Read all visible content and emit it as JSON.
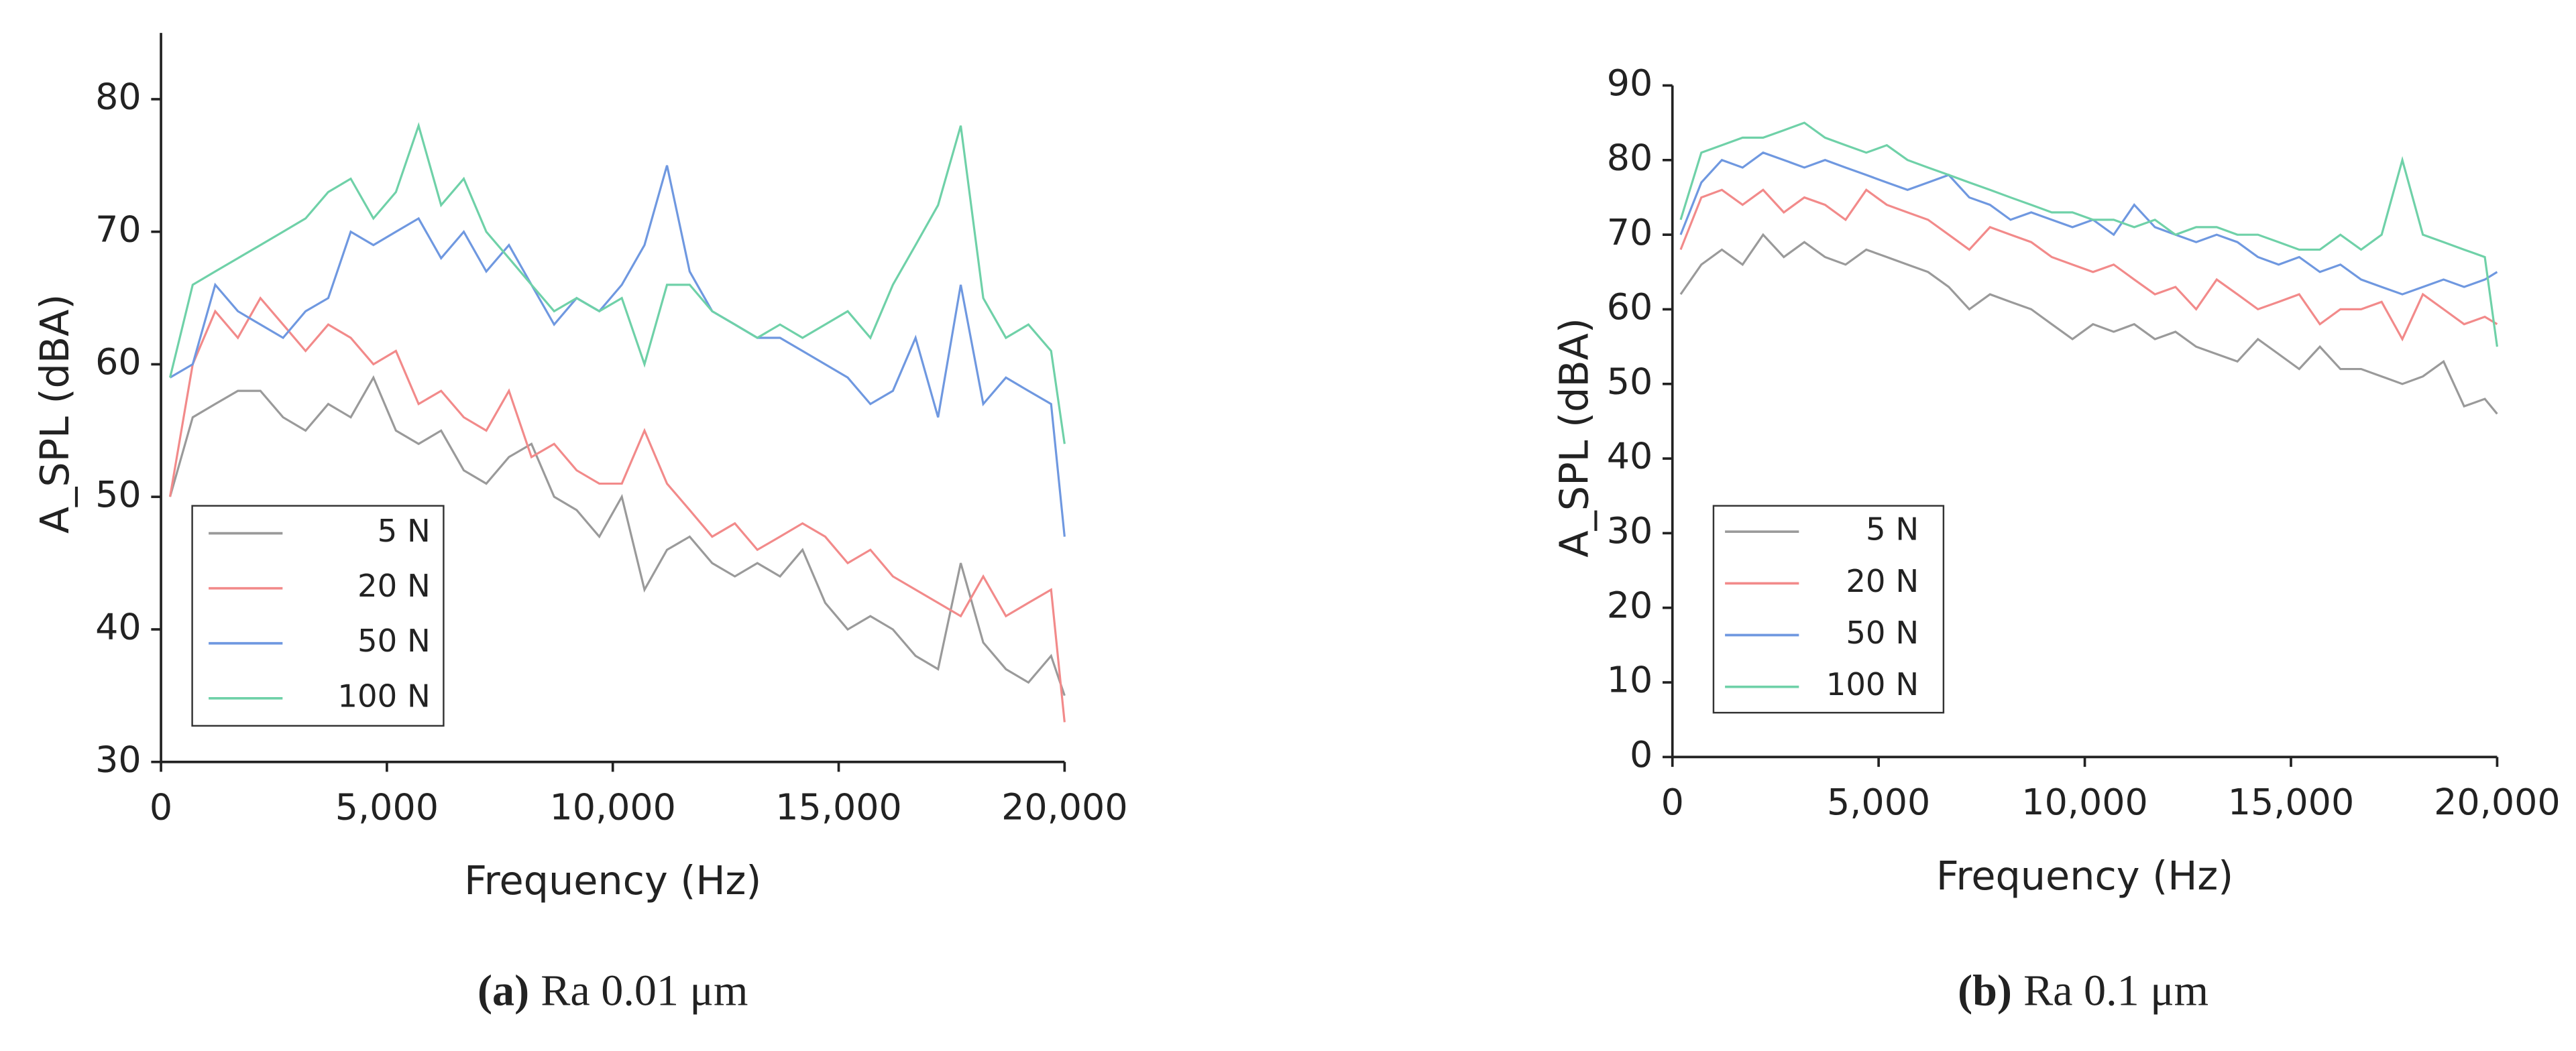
{
  "chart_data": [
    {
      "type": "line",
      "caption_label": "(a)",
      "caption": "Ra 0.01 μm",
      "xlabel": "Frequency (Hz)",
      "ylabel": "A_SPL (dBA)",
      "x": [
        200,
        700,
        1200,
        1700,
        2200,
        2700,
        3200,
        3700,
        4200,
        4700,
        5200,
        5700,
        6200,
        6700,
        7200,
        7700,
        8200,
        8700,
        9200,
        9700,
        10200,
        10700,
        11200,
        11700,
        12200,
        12700,
        13200,
        13700,
        14200,
        14700,
        15200,
        15700,
        16200,
        16700,
        17200,
        17700,
        18200,
        18700,
        19200,
        19700,
        20000
      ],
      "xlim": [
        0,
        20000
      ],
      "xticks": [
        0,
        {
          "value": 5000,
          "label": "5,000"
        },
        {
          "value": 10000,
          "label": "10,000"
        },
        {
          "value": 15000,
          "label": "15,000"
        },
        {
          "value": 20000,
          "label": "20,000"
        }
      ],
      "ylim": [
        30,
        85
      ],
      "yticks": [
        30,
        40,
        50,
        60,
        70,
        80
      ],
      "grid": false,
      "legend": "lower left",
      "series": [
        {
          "name": "5 N",
          "color": "#9a9a9a",
          "values": [
            50,
            56,
            57,
            58,
            58,
            56,
            55,
            57,
            56,
            59,
            55,
            54,
            55,
            52,
            51,
            53,
            54,
            50,
            49,
            47,
            50,
            43,
            46,
            47,
            45,
            44,
            45,
            44,
            46,
            42,
            40,
            41,
            40,
            38,
            37,
            45,
            39,
            37,
            36,
            38,
            35
          ]
        },
        {
          "name": "20 N",
          "color": "#f28a8a",
          "values": [
            50,
            60,
            64,
            62,
            65,
            63,
            61,
            63,
            62,
            60,
            61,
            57,
            58,
            56,
            55,
            58,
            53,
            54,
            52,
            51,
            51,
            55,
            51,
            49,
            47,
            48,
            46,
            47,
            48,
            47,
            45,
            46,
            44,
            43,
            42,
            41,
            44,
            41,
            42,
            43,
            33
          ]
        },
        {
          "name": "50 N",
          "color": "#6f98e0",
          "values": [
            59,
            60,
            66,
            64,
            63,
            62,
            64,
            65,
            70,
            69,
            70,
            71,
            68,
            70,
            67,
            69,
            66,
            63,
            65,
            64,
            66,
            69,
            75,
            67,
            64,
            63,
            62,
            62,
            61,
            60,
            59,
            57,
            58,
            62,
            56,
            66,
            57,
            59,
            58,
            57,
            47
          ]
        },
        {
          "name": "100 N",
          "color": "#6fd1a8",
          "values": [
            59,
            66,
            67,
            68,
            69,
            70,
            71,
            73,
            74,
            71,
            73,
            78,
            72,
            74,
            70,
            68,
            66,
            64,
            65,
            64,
            65,
            60,
            66,
            66,
            64,
            63,
            62,
            63,
            62,
            63,
            64,
            62,
            66,
            69,
            72,
            78,
            65,
            62,
            63,
            61,
            54
          ]
        }
      ]
    },
    {
      "type": "line",
      "caption_label": "(b)",
      "caption": "Ra 0.1 μm",
      "xlabel": "Frequency (Hz)",
      "ylabel": "A_SPL (dBA)",
      "x": [
        200,
        700,
        1200,
        1700,
        2200,
        2700,
        3200,
        3700,
        4200,
        4700,
        5200,
        5700,
        6200,
        6700,
        7200,
        7700,
        8200,
        8700,
        9200,
        9700,
        10200,
        10700,
        11200,
        11700,
        12200,
        12700,
        13200,
        13700,
        14200,
        14700,
        15200,
        15700,
        16200,
        16700,
        17200,
        17700,
        18200,
        18700,
        19200,
        19700,
        20000
      ],
      "xlim": [
        0,
        20000
      ],
      "xticks": [
        0,
        {
          "value": 5000,
          "label": "5,000"
        },
        {
          "value": 10000,
          "label": "10,000"
        },
        {
          "value": 15000,
          "label": "15,000"
        },
        {
          "value": 20000,
          "label": "20,000"
        }
      ],
      "ylim": [
        0,
        90
      ],
      "yticks": [
        0,
        10,
        20,
        30,
        40,
        50,
        60,
        70,
        80,
        90
      ],
      "grid": false,
      "legend": "lower left",
      "series": [
        {
          "name": "5 N",
          "color": "#9a9a9a",
          "values": [
            62,
            66,
            68,
            66,
            70,
            67,
            69,
            67,
            66,
            68,
            67,
            66,
            65,
            63,
            60,
            62,
            61,
            60,
            58,
            56,
            58,
            57,
            58,
            56,
            57,
            55,
            54,
            53,
            56,
            54,
            52,
            55,
            52,
            52,
            51,
            50,
            51,
            53,
            47,
            48,
            46
          ]
        },
        {
          "name": "20 N",
          "color": "#f28a8a",
          "values": [
            68,
            75,
            76,
            74,
            76,
            73,
            75,
            74,
            72,
            76,
            74,
            73,
            72,
            70,
            68,
            71,
            70,
            69,
            67,
            66,
            65,
            66,
            64,
            62,
            63,
            60,
            64,
            62,
            60,
            61,
            62,
            58,
            60,
            60,
            61,
            56,
            62,
            60,
            58,
            59,
            58
          ]
        },
        {
          "name": "50 N",
          "color": "#6f98e0",
          "values": [
            70,
            77,
            80,
            79,
            81,
            80,
            79,
            80,
            79,
            78,
            77,
            76,
            77,
            78,
            75,
            74,
            72,
            73,
            72,
            71,
            72,
            70,
            74,
            71,
            70,
            69,
            70,
            69,
            67,
            66,
            67,
            65,
            66,
            64,
            63,
            62,
            63,
            64,
            63,
            64,
            65
          ]
        },
        {
          "name": "100 N",
          "color": "#6fd1a8",
          "values": [
            72,
            81,
            82,
            83,
            83,
            84,
            85,
            83,
            82,
            81,
            82,
            80,
            79,
            78,
            77,
            76,
            75,
            74,
            73,
            73,
            72,
            72,
            71,
            72,
            70,
            71,
            71,
            70,
            70,
            69,
            68,
            68,
            70,
            68,
            70,
            80,
            70,
            69,
            68,
            67,
            55
          ]
        }
      ]
    }
  ]
}
